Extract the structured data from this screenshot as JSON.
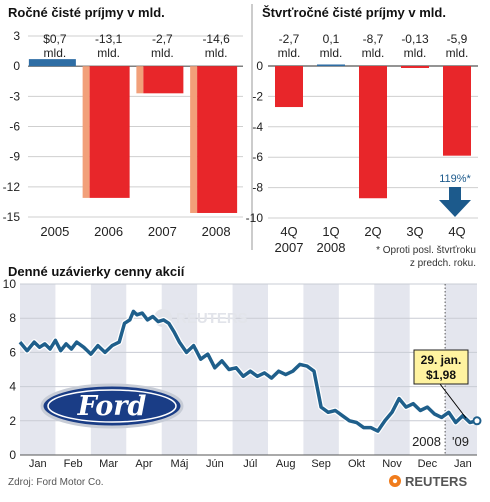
{
  "chart_data": [
    {
      "type": "bar",
      "title": "Ročné čisté príjmy v mld.",
      "categories": [
        "2005",
        "2006",
        "2007",
        "2008"
      ],
      "series": [
        {
          "values": [
            0.7,
            -13.1,
            -2.7,
            -14.6
          ]
        }
      ],
      "value_labels": [
        "$0,7 mld.",
        "-13,1 mld.",
        "-2,7 mld.",
        "-14,6 mld."
      ],
      "yticks": [
        "3",
        "0",
        "-3",
        "-6",
        "-9",
        "-12",
        "-15"
      ],
      "ylim": [
        -15.5,
        3.3
      ],
      "grid": true,
      "colors": {
        "positive": "#2e6da4",
        "negative": "#e8262a",
        "shade": "#f2a07a"
      }
    },
    {
      "type": "bar",
      "title": "Štvrťročné čisté príjmy v mld.",
      "categories": [
        "4Q 2007",
        "1Q 2008",
        "2Q",
        "3Q",
        "4Q"
      ],
      "category_lines": [
        [
          "4Q",
          "2007"
        ],
        [
          "1Q",
          "2008"
        ],
        [
          "2Q"
        ],
        [
          "3Q"
        ],
        [
          "4Q"
        ]
      ],
      "series": [
        {
          "values": [
            -2.7,
            0.1,
            -8.7,
            -0.13,
            -5.9
          ]
        }
      ],
      "value_labels": [
        "-2,7 mld.",
        "0,1 mld.",
        "-8,7 mld.",
        "-0,13 mld.",
        "-5,9 mld."
      ],
      "yticks": [
        "0",
        "-2",
        "-4",
        "-6",
        "-8",
        "-10"
      ],
      "ylim": [
        -10.3,
        2
      ],
      "grid": true,
      "annotation": {
        "text": "119%*",
        "category": "4Q"
      },
      "footnote": [
        "* Oproti posl. štvrťroku",
        "z predch. roku."
      ],
      "colors": {
        "positive": "#2e6da4",
        "negative": "#e8262a",
        "arrow": "#1c5a8c"
      }
    },
    {
      "type": "line",
      "title": "Denné uzávierky cenny akcií",
      "x_labels": [
        "Jan",
        "Feb",
        "Mar",
        "Apr",
        "Máj",
        "Jún",
        "Júl",
        "Aug",
        "Sep",
        "Okt",
        "Nov",
        "Dec",
        "Jan"
      ],
      "year_labels": [
        "2008",
        "'09"
      ],
      "yticks": [
        "10",
        "8",
        "6",
        "4",
        "2",
        "0"
      ],
      "ylim": [
        0,
        10
      ],
      "grid": true,
      "series": [
        {
          "x": [
            0,
            0.2,
            0.4,
            0.55,
            0.7,
            0.85,
            1.0,
            1.15,
            1.3,
            1.45,
            1.6,
            1.8,
            2.0,
            2.2,
            2.4,
            2.6,
            2.8,
            2.95,
            3.1,
            3.2,
            3.3,
            3.45,
            3.6,
            3.75,
            3.9,
            4.05,
            4.2,
            4.35,
            4.5,
            4.7,
            4.9,
            5.1,
            5.3,
            5.5,
            5.7,
            5.9,
            6.1,
            6.3,
            6.5,
            6.7,
            6.9,
            7.1,
            7.3,
            7.5,
            7.7,
            7.9,
            8.1,
            8.3,
            8.5,
            8.7,
            8.9,
            9.1,
            9.3,
            9.5,
            9.7,
            9.9,
            10.1,
            10.3,
            10.5,
            10.7,
            10.9,
            11.1,
            11.3,
            11.5,
            11.7,
            11.9,
            12.1,
            12.3,
            12.5,
            12.7,
            12.9
          ],
          "y": [
            6.6,
            6.1,
            6.6,
            6.3,
            6.5,
            6.2,
            6.7,
            6.1,
            6.5,
            6.2,
            6.6,
            6.3,
            5.9,
            6.4,
            6.0,
            6.4,
            6.6,
            7.7,
            7.9,
            8.4,
            8.2,
            8.3,
            7.9,
            8.1,
            7.8,
            7.9,
            7.7,
            7.2,
            6.6,
            6.0,
            6.4,
            5.6,
            5.9,
            5.1,
            5.5,
            5.0,
            5.1,
            4.6,
            4.9,
            4.6,
            4.8,
            4.5,
            4.9,
            4.7,
            4.9,
            5.3,
            5.2,
            4.9,
            2.8,
            2.5,
            2.6,
            2.3,
            2.0,
            1.9,
            1.6,
            1.6,
            1.4,
            2.0,
            2.5,
            3.3,
            2.8,
            3.0,
            2.6,
            2.8,
            2.4,
            2.2,
            2.5,
            1.9,
            2.3,
            1.9,
            2.0
          ]
        }
      ],
      "callout": {
        "line1": "29. jan.",
        "line2": "$1,98"
      },
      "logo_text": "Ford",
      "watermark": "REUTERS",
      "colors": {
        "line": "#1f5f8b",
        "line_outline": "#ffffff",
        "band": "#e4e6ee",
        "callout": "#fff3a0"
      }
    }
  ],
  "source": "Zdroj: Ford Motor Co.",
  "brand": "REUTERS"
}
